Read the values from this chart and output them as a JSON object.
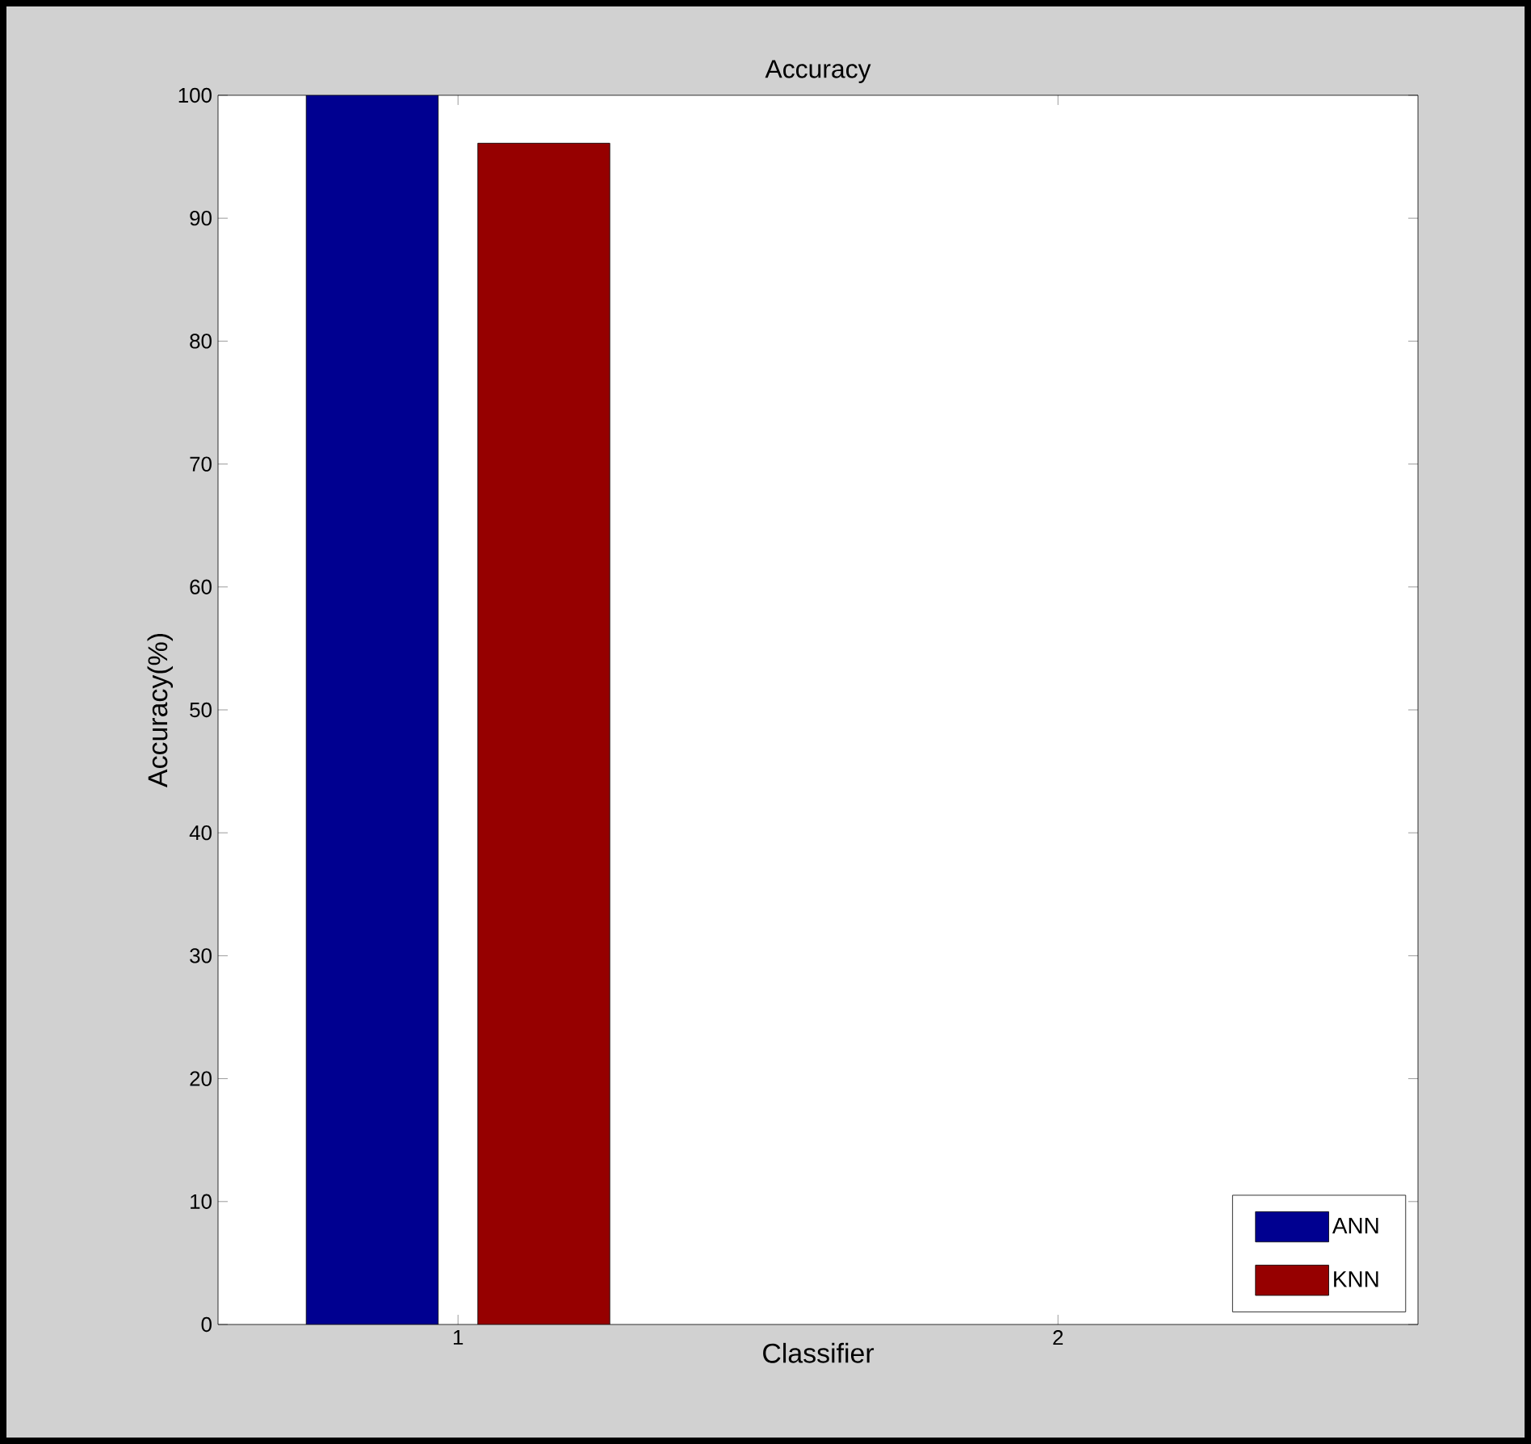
{
  "chart_data": {
    "type": "bar",
    "title": "Accuracy",
    "xlabel": "Classifier",
    "ylabel": "Accuracy(%)",
    "series": [
      {
        "name": "ANN",
        "color": "#000090",
        "x": [
          0.857
        ],
        "values": [
          100
        ]
      },
      {
        "name": "KNN",
        "color": "#960000",
        "x": [
          1.143
        ],
        "values": [
          96.1
        ]
      }
    ],
    "xlim": [
      0.6,
      2.6
    ],
    "xticks": [
      1,
      2
    ],
    "ylim": [
      0,
      100
    ],
    "yticks": [
      0,
      10,
      20,
      30,
      40,
      50,
      60,
      70,
      80,
      90,
      100
    ],
    "legend": "bottom right",
    "grid": false
  }
}
